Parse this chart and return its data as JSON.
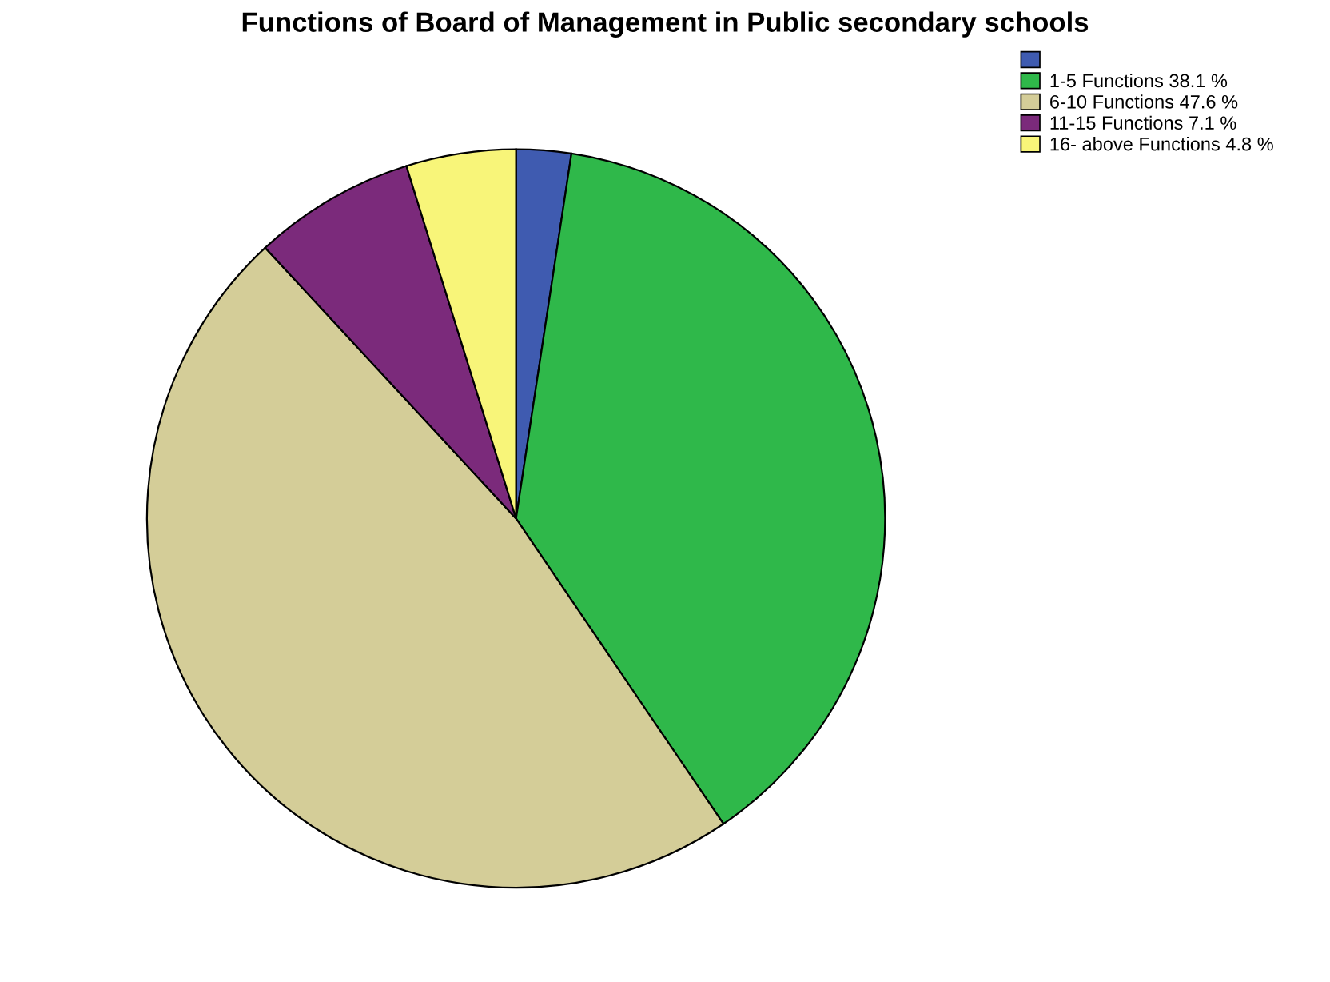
{
  "chart_data": {
    "type": "pie",
    "title": "Functions of Board of Management in Public secondary schools",
    "categories": [
      null,
      "1-5 Functions 38.1 %",
      "6-10 Functions 47.6 %",
      "11-15 Functions 7.1 %",
      "16- above Functions 4.8 %"
    ],
    "values": [
      2.4,
      38.1,
      47.6,
      7.1,
      4.8
    ],
    "colors": [
      "#3f5bb0",
      "#2fb84a",
      "#d4cd98",
      "#7b2a7b",
      "#f8f579"
    ],
    "legend": "top right"
  }
}
